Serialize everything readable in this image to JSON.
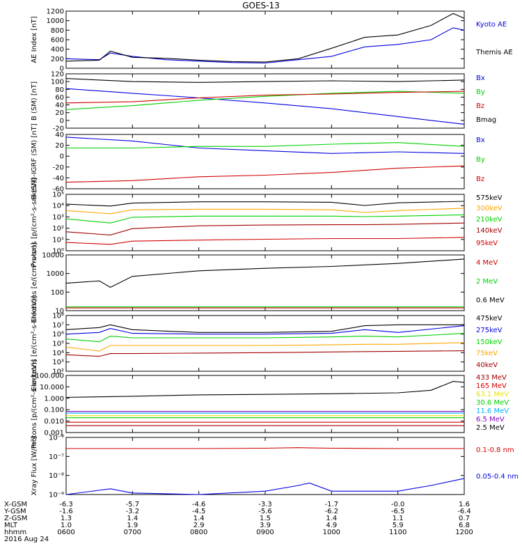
{
  "title": "GOES-13",
  "date": "2016 Aug 24",
  "colors": {
    "black": "#000000",
    "blue": "#0000e0",
    "green": "#00d000",
    "red": "#d00000",
    "orange": "#ffa500",
    "darkred": "#a00000",
    "yellow": "#e6e600",
    "cyan": "#00b0ff",
    "purple": "#8000c0"
  },
  "x_axis": {
    "row_labels": [
      "X-GSM",
      "Y-GSM",
      "Z-GSM",
      "MLT",
      "hhmm"
    ],
    "rows": [
      [
        "-6.3",
        "-5.7",
        "-4.6",
        "-3.3",
        "-1.7",
        "-0.0",
        "1.6"
      ],
      [
        "-1.6",
        "-3.2",
        "-4.5",
        "-5.6",
        "-6.2",
        "-6.5",
        "-6.4"
      ],
      [
        "1.3",
        "1.4",
        "1.4",
        "1.5",
        "1.4",
        "1.1",
        "0.7"
      ],
      [
        "1.0",
        "1.9",
        "2.9",
        "3.9",
        "4.9",
        "5.9",
        "6.8"
      ],
      [
        "0600",
        "0700",
        "0800",
        "0900",
        "1000",
        "1100",
        "1200"
      ]
    ]
  },
  "chart_data": [
    {
      "type": "line",
      "ylabel": "AE Index [nT]",
      "ylim": [
        0,
        1200
      ],
      "yticks": [
        "0",
        "200",
        "400",
        "600",
        "800",
        "1000",
        "1200"
      ],
      "legend": [
        "Kyoto AE",
        "Themis AE"
      ],
      "x": [
        "0600",
        "0630",
        "0640",
        "0700",
        "0730",
        "0800",
        "0830",
        "0900",
        "0930",
        "1000",
        "1030",
        "1100",
        "1130",
        "1150",
        "1200"
      ],
      "series": [
        {
          "name": "Kyoto AE",
          "color": "blue",
          "values": [
            200,
            180,
            320,
            250,
            180,
            150,
            120,
            110,
            180,
            250,
            450,
            500,
            600,
            850,
            800
          ]
        },
        {
          "name": "Themis AE",
          "color": "black",
          "values": [
            150,
            170,
            360,
            230,
            210,
            170,
            140,
            130,
            200,
            420,
            650,
            700,
            900,
            1150,
            1050
          ]
        }
      ]
    },
    {
      "type": "line",
      "ylabel": "B (SM) [nT]",
      "ylim": [
        -20,
        120
      ],
      "yticks": [
        "-20",
        "0",
        "20",
        "40",
        "60",
        "80",
        "100",
        "120"
      ],
      "legend": [
        "Bx",
        "By",
        "Bz",
        "Bmag"
      ],
      "x": [
        "0600",
        "0700",
        "0800",
        "0900",
        "1000",
        "1100",
        "1200"
      ],
      "series": [
        {
          "name": "Bx",
          "color": "blue",
          "values": [
            82,
            70,
            58,
            45,
            30,
            10,
            -10
          ]
        },
        {
          "name": "By",
          "color": "green",
          "values": [
            28,
            38,
            52,
            62,
            70,
            75,
            70
          ]
        },
        {
          "name": "Bz",
          "color": "red",
          "values": [
            45,
            48,
            58,
            65,
            68,
            72,
            75
          ]
        },
        {
          "name": "Bmag",
          "color": "black",
          "values": [
            108,
            100,
            98,
            100,
            102,
            100,
            104
          ]
        }
      ]
    },
    {
      "type": "line",
      "ylabel": "B (SM)-IGRF (SM) [nT]",
      "ylim": [
        -60,
        40
      ],
      "yticks": [
        "-60",
        "-40",
        "-20",
        "0",
        "20",
        "40"
      ],
      "legend": [
        "Bx",
        "By",
        "Bz"
      ],
      "x": [
        "0600",
        "0700",
        "0800",
        "0900",
        "1000",
        "1100",
        "1200"
      ],
      "series": [
        {
          "name": "Bx",
          "color": "blue",
          "values": [
            35,
            28,
            15,
            10,
            5,
            8,
            5
          ]
        },
        {
          "name": "By",
          "color": "green",
          "values": [
            15,
            15,
            18,
            18,
            22,
            25,
            18
          ]
        },
        {
          "name": "Bz",
          "color": "red",
          "values": [
            -48,
            -45,
            -38,
            -35,
            -30,
            -22,
            -18
          ]
        }
      ]
    },
    {
      "type": "line",
      "ylabel": "Protons [p/(cm²-s-sr-keV)]",
      "yscale": "log",
      "ylim": [
        0.5,
        100000
      ],
      "yticks": [
        "10⁰",
        "10¹",
        "10²",
        "10³",
        "10⁴",
        "10⁵"
      ],
      "legend": [
        "575keV",
        "300keV",
        "210keV",
        "140keV",
        "95keV"
      ],
      "x": [
        "0600",
        "0640",
        "0700",
        "0800",
        "0900",
        "1000",
        "1030",
        "1100",
        "1200"
      ],
      "series": [
        {
          "name": "575keV",
          "color": "black",
          "values": [
            12000,
            8000,
            15000,
            20000,
            20000,
            18000,
            9000,
            16000,
            22000
          ]
        },
        {
          "name": "300keV",
          "color": "orange",
          "values": [
            3000,
            1500,
            3500,
            4000,
            4000,
            3500,
            2000,
            3000,
            5000
          ]
        },
        {
          "name": "210keV",
          "color": "green",
          "values": [
            500,
            200,
            700,
            900,
            900,
            900,
            800,
            900,
            1200
          ]
        },
        {
          "name": "140keV",
          "color": "darkred",
          "values": [
            30,
            15,
            60,
            110,
            130,
            140,
            140,
            150,
            200
          ]
        },
        {
          "name": "95keV",
          "color": "red",
          "values": [
            3,
            2,
            4,
            5,
            6,
            7,
            7,
            7,
            9
          ]
        }
      ]
    },
    {
      "type": "line",
      "ylabel": "Electrons [e/(cm²-s-sr)]",
      "yscale": "log",
      "ylim": [
        10,
        10000
      ],
      "yticks": [
        "10",
        "100",
        "1000",
        "10000"
      ],
      "legend": [
        "4 MeV",
        "2 MeV",
        "0.6 MeV"
      ],
      "x": [
        "0600",
        "0630",
        "0640",
        "0700",
        "0800",
        "0900",
        "1000",
        "1100",
        "1200"
      ],
      "series": [
        {
          "name": "4 MeV",
          "color": "red",
          "values": [
            14,
            14,
            14,
            14,
            14,
            14,
            14,
            14,
            14
          ]
        },
        {
          "name": "2 MeV",
          "color": "green",
          "values": [
            16,
            16,
            16,
            16,
            16,
            16,
            16,
            16,
            16
          ]
        },
        {
          "name": "0.6 MeV",
          "color": "black",
          "values": [
            300,
            400,
            180,
            700,
            1400,
            1900,
            2400,
            3500,
            6000
          ]
        }
      ]
    },
    {
      "type": "line",
      "ylabel": "Electrons [e/(cm²-s-sr-keV)]",
      "yscale": "log",
      "ylim": [
        100,
        100000000
      ],
      "yticks": [
        "10²",
        "10³",
        "10⁴",
        "10⁵",
        "10⁶",
        "10⁷",
        "10⁸"
      ],
      "legend": [
        "475keV",
        "275keV",
        "150keV",
        "75keV",
        "40keV"
      ],
      "x": [
        "0600",
        "0630",
        "0640",
        "0700",
        "0800",
        "0900",
        "1000",
        "1030",
        "1100",
        "1200"
      ],
      "series": [
        {
          "name": "475keV",
          "color": "black",
          "values": [
            3000000,
            5000000,
            10000000,
            3000000,
            1500000,
            1500000,
            2000000,
            8000000,
            10000000,
            10000000
          ]
        },
        {
          "name": "275keV",
          "color": "blue",
          "values": [
            1000000,
            1500000,
            4000000,
            1200000,
            1000000,
            1000000,
            1200000,
            3000000,
            1500000,
            8000000
          ]
        },
        {
          "name": "150keV",
          "color": "green",
          "values": [
            300000,
            150000,
            600000,
            400000,
            400000,
            400000,
            500000,
            600000,
            500000,
            1200000
          ]
        },
        {
          "name": "75keV",
          "color": "orange",
          "values": [
            40000,
            15000,
            60000,
            60000,
            60000,
            60000,
            70000,
            80000,
            80000,
            120000
          ]
        },
        {
          "name": "40keV",
          "color": "darkred",
          "values": [
            6000,
            4000,
            8000,
            8000,
            9000,
            10000,
            12000,
            13000,
            14000,
            16000
          ]
        }
      ]
    },
    {
      "type": "line",
      "ylabel": "Protons [p/(cm²-s-sr-keV)]",
      "yscale": "log",
      "ylim": [
        0.001,
        100
      ],
      "yticks": [
        "0.001",
        "0.010",
        "0.100",
        "1.000",
        "10.000",
        "100.000"
      ],
      "legend": [
        "433 MeV",
        "165 MeV",
        "63.1 MeV",
        "30.6 MeV",
        "11.6 MeV",
        "6.5 MeV",
        "2.5 MeV"
      ],
      "x": [
        "0600",
        "0700",
        "0800",
        "0900",
        "1000",
        "1100",
        "1130",
        "1150",
        "1200"
      ],
      "series": [
        {
          "name": "433 MeV",
          "color": "darkred",
          "values": [
            0.004,
            0.004,
            0.004,
            0.004,
            0.004,
            0.004,
            0.004,
            0.004,
            0.004
          ]
        },
        {
          "name": "165 MeV",
          "color": "red",
          "values": [
            0.008,
            0.008,
            0.008,
            0.008,
            0.008,
            0.008,
            0.008,
            0.008,
            0.008
          ]
        },
        {
          "name": "63.1 MeV",
          "color": "yellow",
          "values": [
            0.03,
            0.03,
            0.03,
            0.03,
            0.03,
            0.03,
            0.03,
            0.03,
            0.03
          ]
        },
        {
          "name": "30.6 MeV",
          "color": "green",
          "values": [
            0.02,
            0.02,
            0.02,
            0.02,
            0.02,
            0.02,
            0.02,
            0.02,
            0.02
          ]
        },
        {
          "name": "11.6 MeV",
          "color": "cyan",
          "values": [
            0.05,
            0.05,
            0.05,
            0.05,
            0.05,
            0.05,
            0.05,
            0.05,
            0.05
          ]
        },
        {
          "name": "6.5 MeV",
          "color": "purple",
          "values": [
            0.07,
            0.07,
            0.07,
            0.07,
            0.07,
            0.07,
            0.07,
            0.07,
            0.07
          ]
        },
        {
          "name": "2.5 MeV",
          "color": "black",
          "values": [
            1.2,
            1.5,
            2.0,
            2.2,
            2.5,
            3.0,
            5.0,
            30.0,
            25.0
          ]
        }
      ]
    },
    {
      "type": "line",
      "ylabel": "Xray Flux [W/m²]",
      "yscale": "log",
      "ylim": [
        1e-09,
        1e-06
      ],
      "yticks": [
        "10⁻⁹",
        "10⁻⁸",
        "10⁻⁷",
        "10⁻⁶"
      ],
      "legend": [
        "0.1-0.8 nm",
        "0.05-0.4 nm"
      ],
      "x": [
        "0600",
        "0640",
        "0700",
        "0800",
        "0900",
        "0930",
        "0940",
        "1000",
        "1100",
        "1130",
        "1200"
      ],
      "series": [
        {
          "name": "0.1-0.8 nm",
          "color": "red",
          "values": [
            2.6e-07,
            2.6e-07,
            2.6e-07,
            2.6e-07,
            2.7e-07,
            2.9e-07,
            2.8e-07,
            2.7e-07,
            2.6e-07,
            2.6e-07,
            2.6e-07
          ]
        },
        {
          "name": "0.05-0.4 nm",
          "color": "blue",
          "values": [
            1e-09,
            2e-09,
            1.2e-09,
            1e-09,
            1.5e-09,
            3e-09,
            4e-09,
            1.5e-09,
            1.5e-09,
            3e-09,
            7e-09
          ]
        }
      ]
    }
  ]
}
